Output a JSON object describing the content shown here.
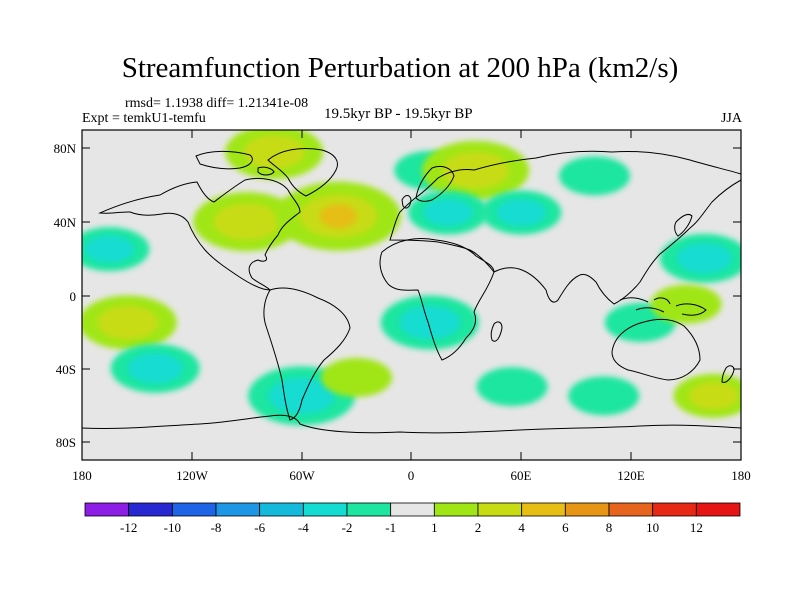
{
  "title": "Streamfunction Perturbation at 200 hPa (km2/s)",
  "stats": "rmsd= 1.1938 diff= 1.21341e-08",
  "experiment": "Expt = temkU1-temfu",
  "period": "19.5kyr BP - 19.5kyr BP",
  "season": "JJA",
  "lat_ticks": [
    "80N",
    "40N",
    "0",
    "40S",
    "80S"
  ],
  "lon_ticks": [
    "180",
    "120W",
    "60W",
    "0",
    "60E",
    "120E",
    "180"
  ],
  "colorbar": {
    "labels": [
      "-12",
      "-10",
      "-8",
      "-6",
      "-4",
      "-2",
      "-1",
      "1",
      "2",
      "4",
      "6",
      "8",
      "10",
      "12"
    ],
    "colors": [
      "#8c1ee6",
      "#2828d2",
      "#1e64e6",
      "#1e96e6",
      "#14b9dc",
      "#14dcd2",
      "#1ee6a0",
      "#e6e6e6",
      "#a0e614",
      "#c8dc14",
      "#e6be14",
      "#e69614",
      "#e6641e",
      "#e62814",
      "#e61414"
    ]
  },
  "chart_data": {
    "type": "heatmap",
    "title": "Streamfunction Perturbation at 200 hPa (km2/s)",
    "variable": "Streamfunction perturbation",
    "units": "km2/s",
    "level": "200 hPa",
    "season": "JJA",
    "rmsd": 1.1938,
    "diff": 1.21341e-08,
    "lon_range": [
      -180,
      180
    ],
    "lat_range": [
      -90,
      90
    ],
    "contour_levels": [
      -12,
      -10,
      -8,
      -6,
      -4,
      -2,
      -1,
      1,
      2,
      4,
      6,
      8,
      10,
      12
    ],
    "features": [
      {
        "lon": -90,
        "lat": 40,
        "value": 3.5
      },
      {
        "lon": -40,
        "lat": 43,
        "value": 4.5
      },
      {
        "lon": -75,
        "lat": 78,
        "value": 3
      },
      {
        "lon": 10,
        "lat": 68,
        "value": -1.5
      },
      {
        "lon": 35,
        "lat": 68,
        "value": 3.5
      },
      {
        "lon": 20,
        "lat": 45,
        "value": -2
      },
      {
        "lon": 60,
        "lat": 45,
        "value": -2
      },
      {
        "lon": 100,
        "lat": 65,
        "value": -1.5
      },
      {
        "lon": 160,
        "lat": 20,
        "value": -2.5
      },
      {
        "lon": -165,
        "lat": 25,
        "value": -2
      },
      {
        "lon": -155,
        "lat": -15,
        "value": 3
      },
      {
        "lon": -140,
        "lat": -40,
        "value": -2.5
      },
      {
        "lon": 10,
        "lat": -15,
        "value": -3
      },
      {
        "lon": -60,
        "lat": -55,
        "value": -3.5
      },
      {
        "lon": 55,
        "lat": -50,
        "value": -1.5
      },
      {
        "lon": 105,
        "lat": -55,
        "value": -1.5
      },
      {
        "lon": 165,
        "lat": -55,
        "value": 2
      },
      {
        "lon": 125,
        "lat": -15,
        "value": -1.5
      },
      {
        "lon": 150,
        "lat": -5,
        "value": 1.5
      },
      {
        "lon": -30,
        "lat": -45,
        "value": 1.5
      }
    ]
  }
}
